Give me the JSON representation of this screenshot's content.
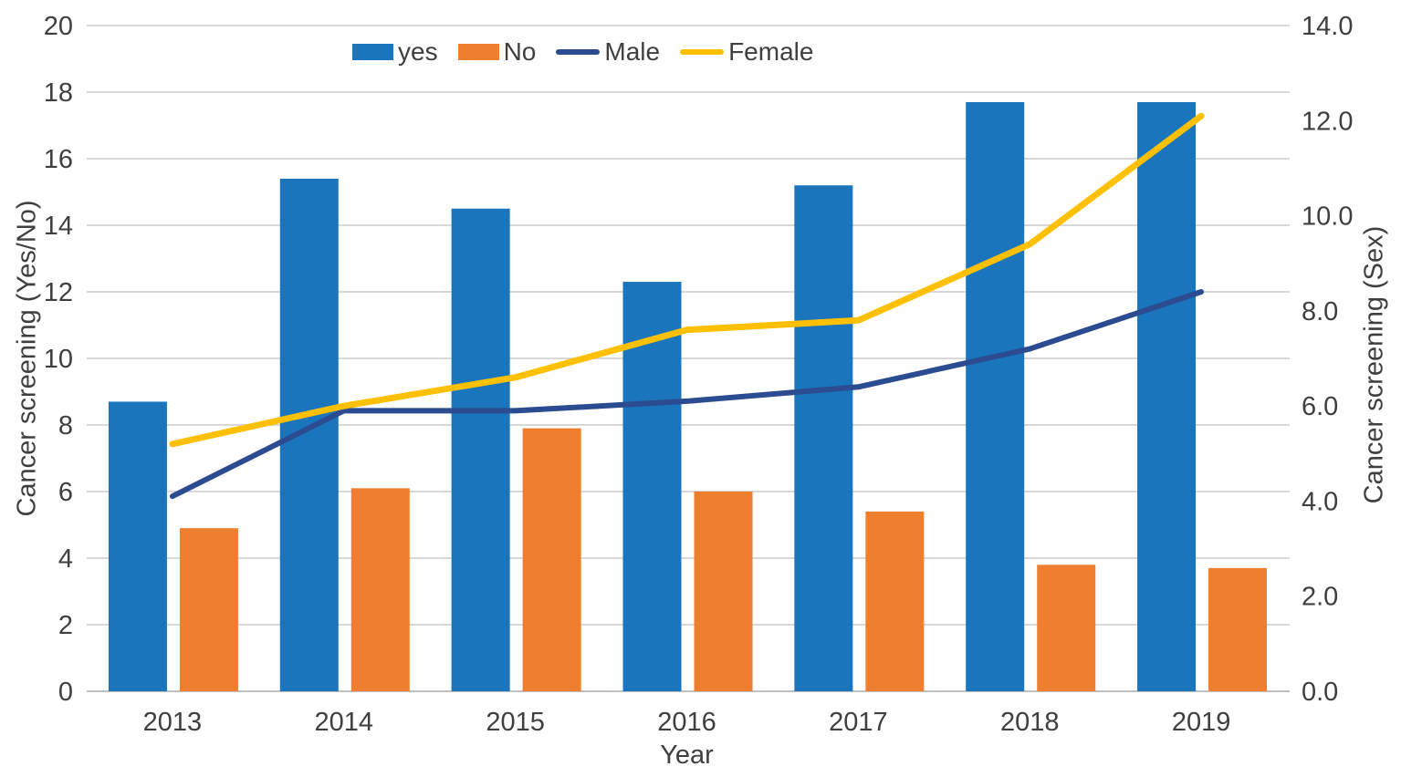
{
  "chart_data": {
    "type": "combo (bar + line, dual axis)",
    "categories": [
      "2013",
      "2014",
      "2015",
      "2016",
      "2017",
      "2018",
      "2019"
    ],
    "series": [
      {
        "name": "yes",
        "render": "bar",
        "axis": "left",
        "color": "#1b75bc",
        "values": [
          8.7,
          15.4,
          14.5,
          12.3,
          15.2,
          17.7,
          17.7
        ]
      },
      {
        "name": "No",
        "render": "bar",
        "axis": "left",
        "color": "#ef7e2e",
        "values": [
          4.9,
          6.1,
          7.9,
          6.0,
          5.4,
          3.8,
          3.7
        ]
      },
      {
        "name": "Male",
        "render": "line",
        "axis": "right",
        "color": "#2b4c90",
        "values": [
          4.1,
          5.9,
          5.9,
          6.1,
          6.4,
          7.2,
          8.4
        ]
      },
      {
        "name": "Female",
        "render": "line",
        "axis": "right",
        "color": "#fec001",
        "values": [
          5.2,
          6.0,
          6.6,
          7.6,
          7.8,
          9.4,
          12.1
        ]
      }
    ],
    "x_axis": {
      "label": "Year",
      "tick_labels": [
        "2013",
        "2014",
        "2015",
        "2016",
        "2017",
        "2018",
        "2019"
      ]
    },
    "left_axis": {
      "label": "Cancer screening (Yes/No)",
      "min": 0,
      "max": 20,
      "step": 2,
      "tick_labels": [
        "0",
        "2",
        "4",
        "6",
        "8",
        "10",
        "12",
        "14",
        "16",
        "18",
        "20"
      ]
    },
    "right_axis": {
      "label": "Cancer screening (Sex)",
      "min": 0,
      "max": 14,
      "step": 2,
      "tick_labels": [
        "0.0",
        "2.0",
        "4.0",
        "6.0",
        "8.0",
        "10.0",
        "12.0",
        "14.0"
      ]
    },
    "grid": "horizontal gridlines at every left-axis tick",
    "legend_position": "top"
  },
  "style_colors": {
    "background": "#ffffff",
    "gridline": "#d8d8d8",
    "baseline": "#c0c0c0",
    "text": "#3f3f3f"
  }
}
